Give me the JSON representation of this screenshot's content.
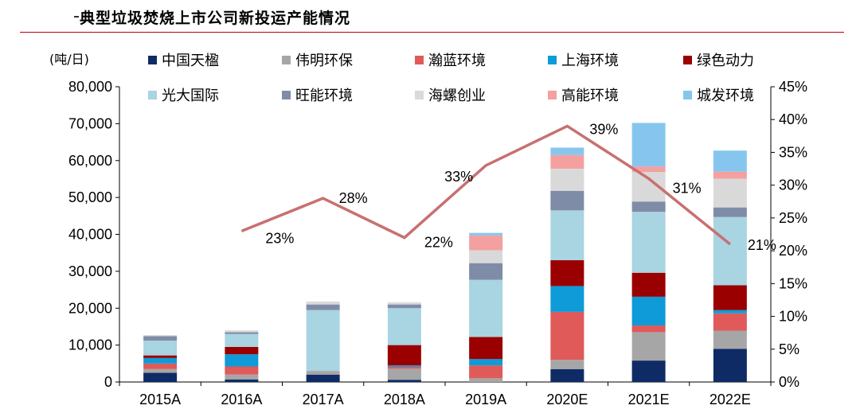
{
  "header": {
    "title": "典型垃圾焚烧上市公司新投运产能情况"
  },
  "chart_data": {
    "type": "bar",
    "stacked": true,
    "unit_left": "(吨/日)",
    "categories": [
      "2015A",
      "2016A",
      "2017A",
      "2018A",
      "2019A",
      "2020E",
      "2021E",
      "2022E"
    ],
    "ylim": [
      0,
      80000
    ],
    "yticks": [
      "0",
      "10,000",
      "20,000",
      "30,000",
      "40,000",
      "50,000",
      "60,000",
      "70,000",
      "80,000"
    ],
    "y2lim": [
      0,
      45
    ],
    "y2ticks": [
      "0%",
      "5%",
      "10%",
      "15%",
      "20%",
      "25%",
      "30%",
      "35%",
      "40%",
      "45%"
    ],
    "legend_position": "top",
    "series": [
      {
        "name": "中国天楹",
        "color": "#0e2b66",
        "values": [
          2500,
          700,
          2000,
          600,
          0,
          3500,
          5800,
          9000
        ]
      },
      {
        "name": "伟明环保",
        "color": "#a6a6a6",
        "values": [
          1000,
          1300,
          1000,
          3000,
          1000,
          2500,
          7700,
          4900
        ]
      },
      {
        "name": "瀚蓝环境",
        "color": "#e05a5a",
        "values": [
          1500,
          2200,
          0,
          500,
          3500,
          13000,
          1800,
          4700
        ]
      },
      {
        "name": "上海环境",
        "color": "#0e9bd7",
        "values": [
          1500,
          3300,
          0,
          400,
          1700,
          7000,
          7800,
          900
        ]
      },
      {
        "name": "绿色动力",
        "color": "#9b0000",
        "values": [
          700,
          2000,
          0,
          5500,
          6000,
          7000,
          6500,
          6700
        ]
      },
      {
        "name": "光大国际",
        "color": "#a9d4e2",
        "values": [
          4000,
          3500,
          16500,
          10000,
          15500,
          13500,
          16500,
          18500
        ]
      },
      {
        "name": "旺能环境",
        "color": "#7f8ca8",
        "values": [
          1200,
          500,
          1500,
          1000,
          4500,
          5300,
          2800,
          2600
        ]
      },
      {
        "name": "海螺创业",
        "color": "#d9d9d9",
        "values": [
          300,
          500,
          800,
          600,
          3500,
          6000,
          8000,
          7800
        ]
      },
      {
        "name": "高能环境",
        "color": "#f4a0a0",
        "values": [
          0,
          0,
          0,
          0,
          4000,
          3700,
          1500,
          1900
        ]
      },
      {
        "name": "城发环境",
        "color": "#86c6ee",
        "values": [
          0,
          0,
          0,
          0,
          700,
          2000,
          11800,
          5700
        ]
      }
    ],
    "line": {
      "color": "#c87070",
      "values": [
        null,
        23,
        28,
        22,
        33,
        39,
        31,
        21
      ],
      "labels": [
        "",
        "23%",
        "28%",
        "22%",
        "33%",
        "39%",
        "31%",
        "21%"
      ]
    }
  }
}
